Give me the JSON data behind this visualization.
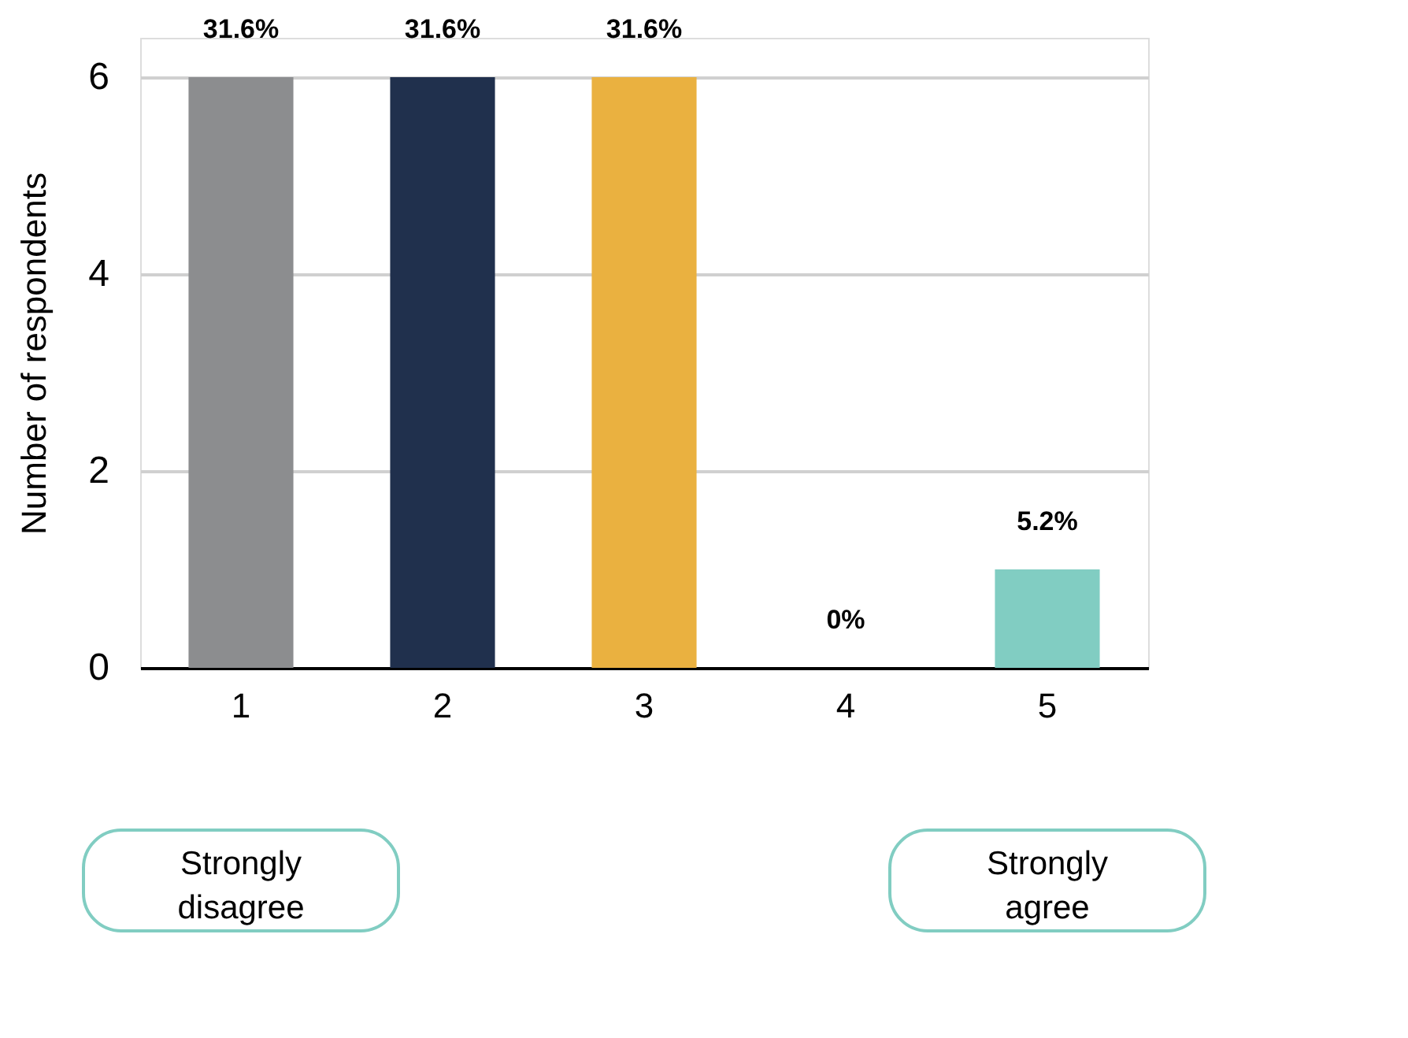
{
  "chart_data": {
    "type": "bar",
    "ylabel": "Number of respondents",
    "categories": [
      "1",
      "2",
      "3",
      "4",
      "5"
    ],
    "values": [
      6,
      6,
      6,
      0,
      1
    ],
    "colors": [
      "#8c8d8f",
      "#20304d",
      "#eab140",
      "#ffffff",
      "#81cdc2"
    ],
    "ylim": [
      0,
      6.4
    ],
    "yticks": [
      0,
      2,
      4,
      6
    ],
    "grid": "y",
    "annotations": [
      {
        "text": "31.6%",
        "x": "1",
        "y": 6
      },
      {
        "text": "31.6%",
        "x": "2",
        "y": 6
      },
      {
        "text": "31.6%",
        "x": "3",
        "y": 6
      },
      {
        "text": "0%",
        "x": "4",
        "y": 0
      },
      {
        "text": "5.2%",
        "x": "5",
        "y": 1
      },
      "Strongly disagree",
      "Strongly agree"
    ]
  }
}
